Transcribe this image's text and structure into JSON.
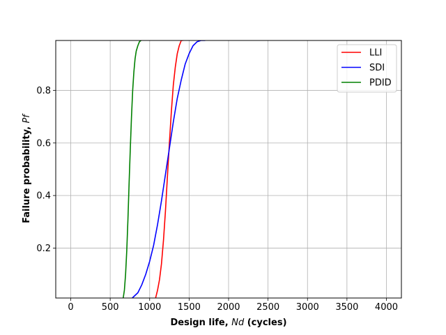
{
  "chart_data": {
    "type": "line",
    "title": "",
    "xlabel_prefix": "Design life, ",
    "xlabel_symbol": "Nd",
    "xlabel_suffix": " (cycles)",
    "ylabel_prefix": "Failure probability, ",
    "ylabel_symbol": "Pf",
    "xlim": [
      -190,
      4190
    ],
    "ylim": [
      0.01,
      0.99
    ],
    "xticks": [
      0,
      500,
      1000,
      1500,
      2000,
      2500,
      3000,
      3500,
      4000
    ],
    "xtick_labels": [
      "0",
      "500",
      "1000",
      "1500",
      "2000",
      "2500",
      "3000",
      "3500",
      "4000"
    ],
    "yticks": [
      0.2,
      0.4,
      0.6,
      0.8
    ],
    "ytick_labels": [
      "0.2",
      "0.4",
      "0.6",
      "0.8"
    ],
    "grid": true,
    "legend_position": "top-right",
    "series": [
      {
        "name": "LLI",
        "color": "#ff0000",
        "x": [
          1075,
          1100,
          1125,
          1150,
          1175,
          1200,
          1225,
          1250,
          1275,
          1300,
          1325,
          1350,
          1375,
          1400,
          1420
        ],
        "y": [
          0.01,
          0.04,
          0.08,
          0.14,
          0.23,
          0.34,
          0.47,
          0.6,
          0.72,
          0.82,
          0.89,
          0.94,
          0.97,
          0.99,
          0.99
        ]
      },
      {
        "name": "SDI",
        "color": "#0000ff",
        "x": [
          780,
          850,
          900,
          950,
          1000,
          1050,
          1100,
          1150,
          1200,
          1250,
          1300,
          1350,
          1400,
          1450,
          1500,
          1550,
          1600,
          1650,
          1700
        ],
        "y": [
          0.01,
          0.03,
          0.06,
          0.1,
          0.15,
          0.21,
          0.29,
          0.38,
          0.48,
          0.58,
          0.68,
          0.77,
          0.84,
          0.9,
          0.94,
          0.97,
          0.985,
          0.99,
          0.99
        ]
      },
      {
        "name": "PDID",
        "color": "#008000",
        "x": [
          665,
          680,
          695,
          710,
          725,
          740,
          755,
          770,
          785,
          800,
          815,
          830,
          850,
          870,
          890
        ],
        "y": [
          0.01,
          0.04,
          0.1,
          0.19,
          0.31,
          0.45,
          0.58,
          0.7,
          0.8,
          0.87,
          0.92,
          0.95,
          0.97,
          0.985,
          0.99
        ]
      }
    ]
  }
}
